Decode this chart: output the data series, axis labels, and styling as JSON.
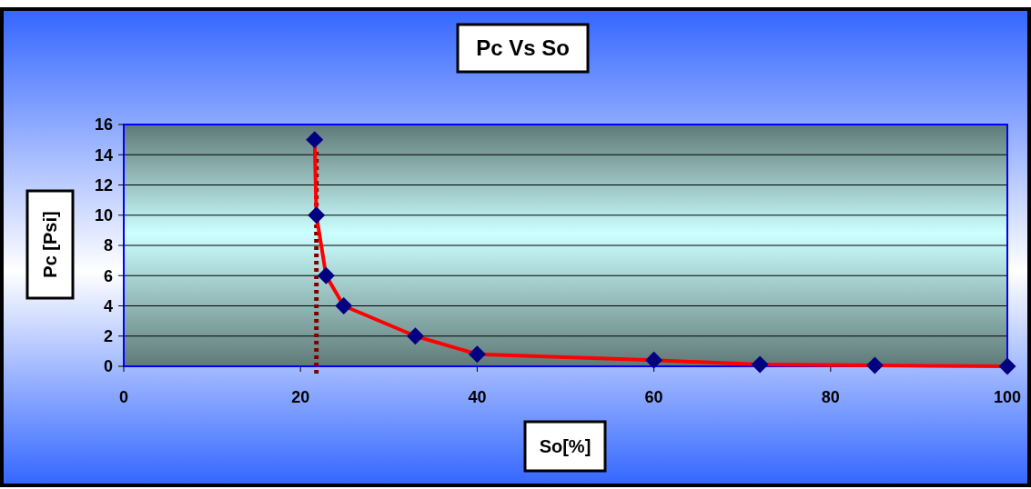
{
  "chart_data": {
    "type": "line",
    "title": "Pc Vs So",
    "xlabel": "So[%]",
    "ylabel": "Pc [Psi]",
    "x": [
      21.6,
      21.8,
      22.9,
      24.9,
      33,
      40,
      60,
      72,
      85,
      100
    ],
    "series": [
      {
        "color": "#ff0000",
        "values": [
          15,
          10,
          6,
          4,
          2,
          0.8,
          0.4,
          0.12,
          0.06,
          0
        ]
      }
    ],
    "marker": "diamond",
    "xlim": [
      0,
      100
    ],
    "xticks": [
      0,
      20,
      40,
      60,
      80,
      100
    ],
    "ylim": [
      0,
      16
    ],
    "yticks": [
      0,
      2,
      4,
      6,
      8,
      10,
      12,
      14,
      16
    ],
    "grid": "y",
    "ref_lines": [
      {
        "axis": "x",
        "value": 21.8,
        "color": "#800000",
        "line_style": "dotted"
      }
    ]
  }
}
